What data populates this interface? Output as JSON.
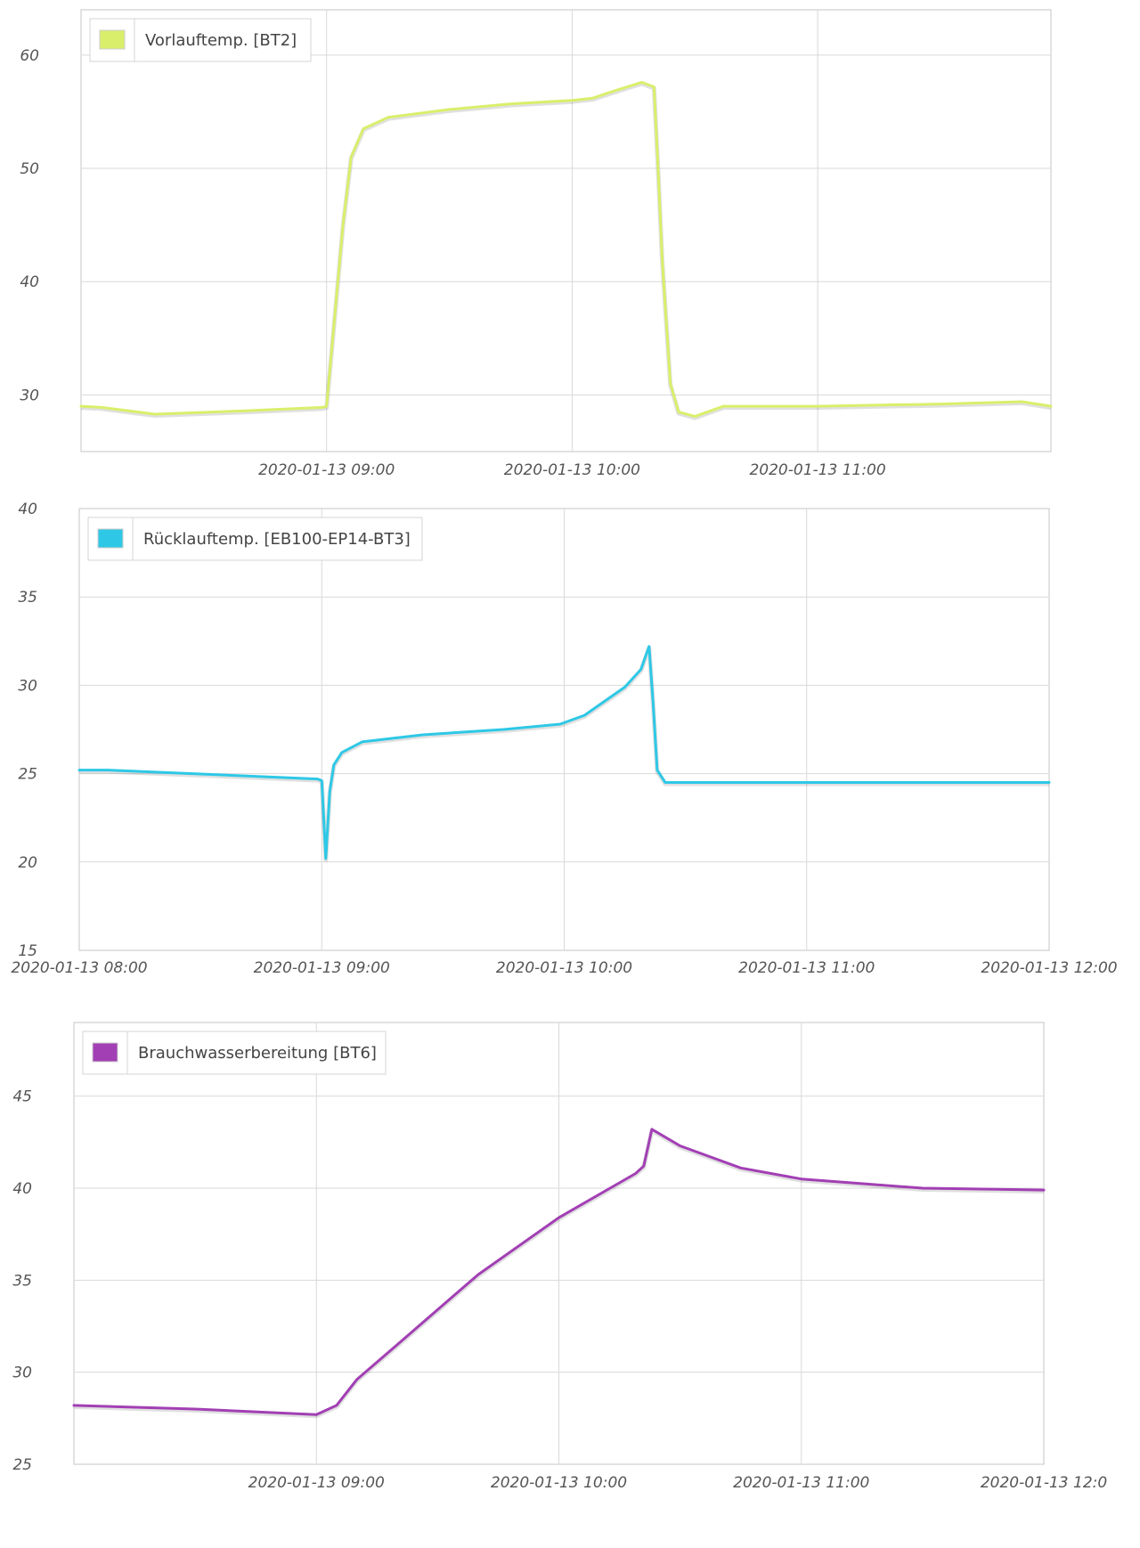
{
  "chart_data": [
    {
      "type": "line",
      "x_ticks": [
        "2020-01-13 09:00",
        "2020-01-13 10:00",
        "2020-01-13 11:00"
      ],
      "y_ticks": [
        "60",
        "50",
        "40",
        "30"
      ],
      "xlim": [
        "2020-01-13 08:00",
        "2020-01-13 11:57"
      ],
      "ylim": [
        25,
        64
      ],
      "grid": true,
      "legend_position": "top-left",
      "series": [
        {
          "name": "Vorlauftemp. [BT2]",
          "color": "#d9ef6b",
          "x": [
            "2020-01-13 08:00",
            "2020-01-13 08:05",
            "2020-01-13 08:18",
            "2020-01-13 08:40",
            "2020-01-13 08:59",
            "2020-01-13 09:00",
            "2020-01-13 09:04",
            "2020-01-13 09:06",
            "2020-01-13 09:09",
            "2020-01-13 09:15",
            "2020-01-13 09:30",
            "2020-01-13 09:45",
            "2020-01-13 10:00",
            "2020-01-13 10:05",
            "2020-01-13 10:10",
            "2020-01-13 10:17",
            "2020-01-13 10:20",
            "2020-01-13 10:21",
            "2020-01-13 10:22",
            "2020-01-13 10:24",
            "2020-01-13 10:26",
            "2020-01-13 10:30",
            "2020-01-13 10:37",
            "2020-01-13 11:00",
            "2020-01-13 11:30",
            "2020-01-13 11:50",
            "2020-01-13 11:57"
          ],
          "values": [
            29.0,
            28.9,
            28.3,
            28.6,
            28.9,
            29.0,
            45.0,
            51.0,
            53.5,
            54.5,
            55.2,
            55.7,
            56.0,
            56.2,
            56.8,
            57.6,
            57.2,
            50.0,
            42.0,
            31.0,
            28.5,
            28.1,
            29.0,
            29.0,
            29.2,
            29.4,
            29.0
          ]
        }
      ]
    },
    {
      "type": "line",
      "x_ticks": [
        "2020-01-13 08:00",
        "2020-01-13 09:00",
        "2020-01-13 10:00",
        "2020-01-13 11:00",
        "2020-01-13 12:00"
      ],
      "y_ticks": [
        "40",
        "35",
        "30",
        "25",
        "20",
        "15"
      ],
      "xlim": [
        "2020-01-13 08:00",
        "2020-01-13 12:00"
      ],
      "ylim": [
        15,
        40
      ],
      "grid": true,
      "legend_position": "top-left",
      "series": [
        {
          "name": "Rücklauftemp. [EB100-EP14-BT3]",
          "color": "#2ec8e6",
          "x": [
            "2020-01-13 08:00",
            "2020-01-13 08:07",
            "2020-01-13 08:59",
            "2020-01-13 09:00",
            "2020-01-13 09:01",
            "2020-01-13 09:02",
            "2020-01-13 09:03",
            "2020-01-13 09:05",
            "2020-01-13 09:10",
            "2020-01-13 09:25",
            "2020-01-13 09:45",
            "2020-01-13 09:59",
            "2020-01-13 10:05",
            "2020-01-13 10:15",
            "2020-01-13 10:19",
            "2020-01-13 10:21",
            "2020-01-13 10:22",
            "2020-01-13 10:23",
            "2020-01-13 10:25",
            "2020-01-13 11:00",
            "2020-01-13 11:30",
            "2020-01-13 12:00"
          ],
          "values": [
            25.2,
            25.2,
            24.7,
            24.6,
            20.2,
            24.0,
            25.5,
            26.2,
            26.8,
            27.2,
            27.5,
            27.8,
            28.3,
            29.9,
            30.9,
            32.2,
            29.0,
            25.2,
            24.5,
            24.5,
            24.5,
            24.5
          ]
        }
      ]
    },
    {
      "type": "line",
      "x_ticks": [
        "2020-01-13 09:00",
        "2020-01-13 10:00",
        "2020-01-13 11:00",
        "2020-01-13 12:0"
      ],
      "y_ticks": [
        "45",
        "40",
        "35",
        "30",
        "25"
      ],
      "xlim": [
        "2020-01-13 08:00",
        "2020-01-13 12:00"
      ],
      "ylim": [
        25,
        49
      ],
      "grid": true,
      "legend_position": "top-left",
      "series": [
        {
          "name": "Brauchwasserbereitung [BT6]",
          "color": "#a23fb4",
          "x": [
            "2020-01-13 08:00",
            "2020-01-13 08:30",
            "2020-01-13 09:00",
            "2020-01-13 09:05",
            "2020-01-13 09:10",
            "2020-01-13 09:20",
            "2020-01-13 09:40",
            "2020-01-13 10:00",
            "2020-01-13 10:19",
            "2020-01-13 10:21",
            "2020-01-13 10:23",
            "2020-01-13 10:30",
            "2020-01-13 10:45",
            "2020-01-13 11:00",
            "2020-01-13 11:30",
            "2020-01-13 12:00"
          ],
          "values": [
            28.2,
            28.0,
            27.7,
            28.2,
            29.6,
            31.5,
            35.3,
            38.4,
            40.8,
            41.2,
            43.2,
            42.3,
            41.1,
            40.5,
            40.0,
            39.9
          ]
        }
      ]
    }
  ]
}
